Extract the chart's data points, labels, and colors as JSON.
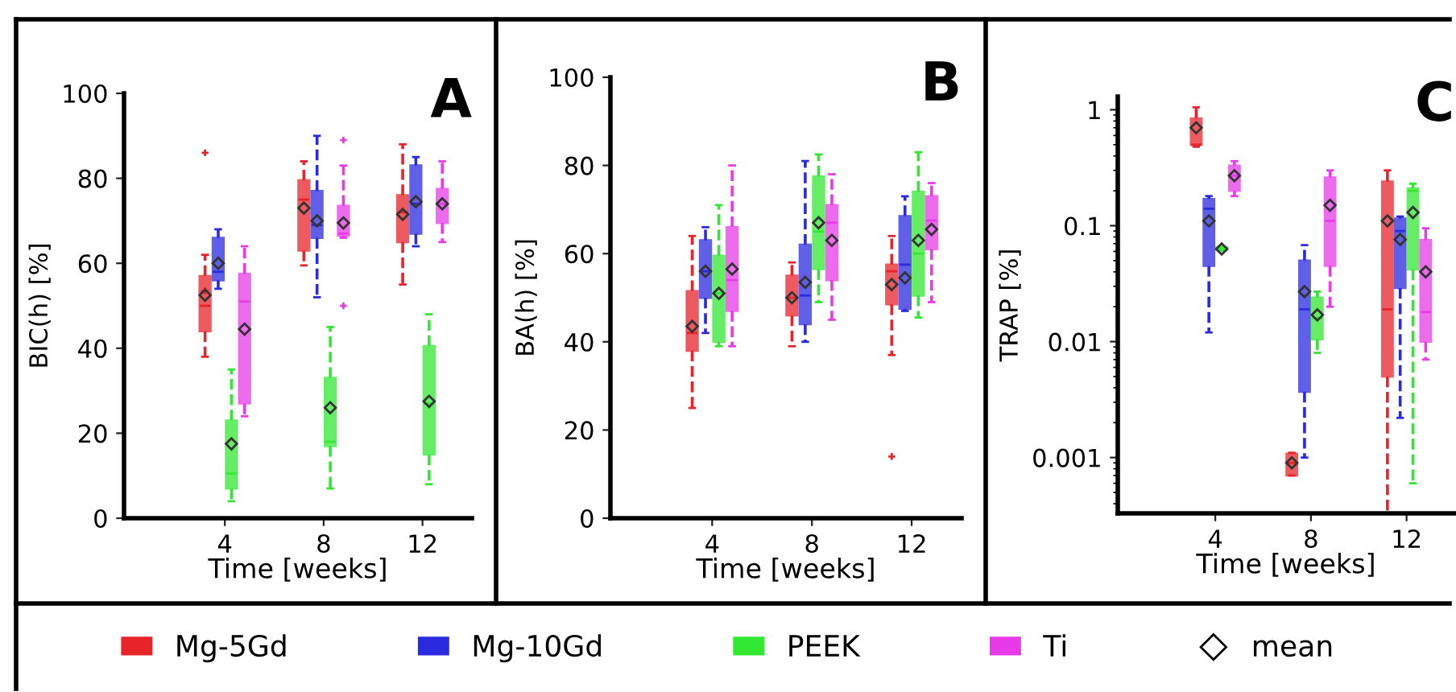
{
  "chart_data": [
    {
      "type": "box",
      "title": "A",
      "xlabel": "Time [weeks]",
      "ylabel": "BIC(h) [%]",
      "categories": [
        "4",
        "8",
        "12"
      ],
      "ylim": [
        0,
        100
      ],
      "yticks": [
        0,
        20,
        40,
        60,
        80,
        100
      ],
      "grid": false,
      "legend": "bottom",
      "marker": "diamond",
      "line_style": "dashed",
      "annotations": [
        "mean"
      ],
      "series": [
        {
          "name": "Mg-5Gd",
          "color": "#e8232a",
          "boxes": [
            {
              "low": 38,
              "q1": 44,
              "median": 50,
              "q3": 57,
              "high": 62,
              "mean": 52.5,
              "outliers": [
                86,
                53.5
              ]
            },
            {
              "low": 59.5,
              "q1": 63,
              "median": 75,
              "q3": 79.5,
              "high": 84,
              "mean": 73
            },
            {
              "low": 55,
              "q1": 65,
              "median": 72,
              "q3": 76,
              "high": 88,
              "mean": 71.5
            }
          ]
        },
        {
          "name": "Mg-10Gd",
          "color": "#2a2ae0",
          "boxes": [
            {
              "low": 54,
              "q1": 56,
              "median": 58,
              "q3": 66,
              "high": 68,
              "mean": 60
            },
            {
              "low": 52,
              "q1": 66,
              "median": 69,
              "q3": 77,
              "high": 90,
              "mean": 70
            },
            {
              "low": 64,
              "q1": 67,
              "median": 74,
              "q3": 83,
              "high": 85,
              "mean": 74.5
            }
          ]
        },
        {
          "name": "PEEK",
          "color": "#33e833",
          "boxes": [
            {
              "low": 4,
              "q1": 7,
              "median": 10.5,
              "q3": 23,
              "high": 35,
              "mean": 17.5
            },
            {
              "low": 7,
              "q1": 17,
              "median": 18,
              "q3": 33,
              "high": 45,
              "mean": 26
            },
            {
              "low": 8,
              "q1": 15,
              "median": 27,
              "q3": 40.5,
              "high": 48,
              "mean": 27.5
            }
          ]
        },
        {
          "name": "Ti",
          "color": "#e83ae8",
          "boxes": [
            {
              "low": 24,
              "q1": 27,
              "median": 51,
              "q3": 57.5,
              "high": 64,
              "mean": 44.5
            },
            {
              "low": 66,
              "q1": 66.5,
              "median": 67,
              "q3": 73.5,
              "high": 83,
              "mean": 69.5,
              "outliers": [
                89,
                50
              ]
            },
            {
              "low": 65,
              "q1": 69.5,
              "median": 74,
              "q3": 77.5,
              "high": 84,
              "mean": 74
            }
          ]
        }
      ]
    },
    {
      "type": "box",
      "title": "B",
      "xlabel": "Time [weeks]",
      "ylabel": "BA(h) [%]",
      "categories": [
        "4",
        "8",
        "12"
      ],
      "ylim": [
        0,
        100
      ],
      "yticks": [
        0,
        20,
        40,
        60,
        80,
        100
      ],
      "grid": false,
      "marker": "diamond",
      "line_style": "dashed",
      "series": [
        {
          "color": "#e8232a",
          "boxes": [
            {
              "low": 25,
              "q1": 38,
              "median": 42,
              "q3": 51.5,
              "high": 64,
              "mean": 43.5
            },
            {
              "low": 39,
              "q1": 46,
              "median": 50,
              "q3": 55,
              "high": 58,
              "mean": 50
            },
            {
              "low": 37,
              "q1": 48.5,
              "median": 56,
              "q3": 57.5,
              "high": 64,
              "mean": 53,
              "outliers": [
                14
              ]
            }
          ]
        },
        {
          "color": "#2a2ae0",
          "boxes": [
            {
              "low": 42,
              "q1": 50,
              "median": 56,
              "q3": 63,
              "high": 66,
              "mean": 56
            },
            {
              "low": 40,
              "q1": 44,
              "median": 50.5,
              "q3": 62,
              "high": 81,
              "mean": 53.5
            },
            {
              "low": 47,
              "q1": 47.5,
              "median": 57.5,
              "q3": 68.5,
              "high": 73,
              "mean": 54.5
            }
          ]
        },
        {
          "color": "#33e833",
          "boxes": [
            {
              "low": 39,
              "q1": 40,
              "median": 51,
              "q3": 59.5,
              "high": 71,
              "mean": 51
            },
            {
              "low": 49,
              "q1": 56.5,
              "median": 65,
              "q3": 77.5,
              "high": 82.5,
              "mean": 67
            },
            {
              "low": 45.5,
              "q1": 50.5,
              "median": 60,
              "q3": 74,
              "high": 83,
              "mean": 63
            }
          ]
        },
        {
          "color": "#e83ae8",
          "boxes": [
            {
              "low": 39,
              "q1": 47,
              "median": 54,
              "q3": 66,
              "high": 80,
              "mean": 56.5
            },
            {
              "low": 45,
              "q1": 54,
              "median": 67,
              "q3": 71,
              "high": 78,
              "mean": 63
            },
            {
              "low": 49,
              "q1": 61,
              "median": 67.5,
              "q3": 73,
              "high": 76,
              "mean": 65.5
            }
          ]
        }
      ]
    },
    {
      "type": "box",
      "title": "C",
      "xlabel": "Time [weeks]",
      "ylabel": "TRAP [%]",
      "categories": [
        "4",
        "8",
        "12"
      ],
      "log": true,
      "ylim": [
        0.00033,
        1.3
      ],
      "yticks": [
        0.001,
        0.01,
        0.1,
        1
      ],
      "grid": false,
      "marker": "diamond",
      "line_style": "dashed",
      "series": [
        {
          "color": "#e8232a",
          "boxes": [
            {
              "low": 0.48,
              "q1": 0.5,
              "median": 0.5,
              "q3": 0.84,
              "high": 1.05,
              "mean": 0.7
            },
            {
              "low": 0.0007,
              "q1": 0.0007,
              "median": 0.0009,
              "q3": 0.00108,
              "high": 0.0011,
              "mean": 0.0009
            },
            {
              "low": 0.00033,
              "q1": 0.005,
              "median": 0.019,
              "q3": 0.24,
              "high": 0.3,
              "mean": 0.11
            }
          ]
        },
        {
          "color": "#2a2ae0",
          "boxes": [
            {
              "low": 0.012,
              "q1": 0.045,
              "median": 0.14,
              "q3": 0.17,
              "high": 0.18,
              "mean": 0.11
            },
            {
              "low": 0.001,
              "q1": 0.0037,
              "median": 0.019,
              "q3": 0.05,
              "high": 0.068,
              "mean": 0.027
            },
            {
              "low": 0.0022,
              "q1": 0.029,
              "median": 0.09,
              "q3": 0.115,
              "high": 0.12,
              "mean": 0.076
            }
          ]
        },
        {
          "color": "#33e833",
          "boxes": [
            {
              "low": 0.061,
              "q1": 0.062,
              "median": 0.063,
              "q3": 0.065,
              "high": 0.066,
              "mean": 0.063
            },
            {
              "low": 0.008,
              "q1": 0.0105,
              "median": 0.016,
              "q3": 0.024,
              "high": 0.027,
              "mean": 0.017
            },
            {
              "low": 0.0006,
              "q1": 0.042,
              "median": 0.2,
              "q3": 0.21,
              "high": 0.23,
              "mean": 0.13
            }
          ]
        },
        {
          "color": "#e83ae8",
          "boxes": [
            {
              "low": 0.18,
              "q1": 0.2,
              "median": 0.27,
              "q3": 0.33,
              "high": 0.36,
              "mean": 0.27
            },
            {
              "low": 0.02,
              "q1": 0.045,
              "median": 0.11,
              "q3": 0.26,
              "high": 0.3,
              "mean": 0.15
            },
            {
              "low": 0.007,
              "q1": 0.01,
              "median": 0.018,
              "q3": 0.075,
              "high": 0.095,
              "mean": 0.04
            }
          ]
        }
      ]
    }
  ]
}
